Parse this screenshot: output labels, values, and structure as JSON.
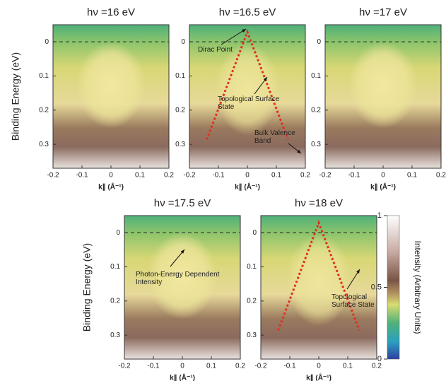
{
  "chart_data": [
    {
      "type": "heatmap",
      "title": "hν =16 eV",
      "ylabel": "Binding Energy (eV)",
      "xlabel": "k∥ (Å⁻¹)",
      "xlim": [
        -0.2,
        0.2
      ],
      "ylim": [
        -0.05,
        0.37
      ],
      "xticks": [
        -0.2,
        -0.1,
        0,
        0.1,
        0.2
      ],
      "yticks": [
        0,
        0.1,
        0.2,
        0.3
      ],
      "annotations": []
    },
    {
      "type": "heatmap",
      "title": "hν =16.5 eV",
      "xlabel": "k∥ (Å⁻¹)",
      "xlim": [
        -0.2,
        0.2
      ],
      "ylim": [
        -0.05,
        0.37
      ],
      "xticks": [
        -0.2,
        -0.1,
        0,
        0.1,
        0.2
      ],
      "yticks": [
        0,
        0.1,
        0.2,
        0.3
      ],
      "annotations": [
        "Dirac Point",
        "Topological Surface State",
        "Bulk Valence Band"
      ]
    },
    {
      "type": "heatmap",
      "title": "hν =17 eV",
      "xlabel": "k∥ (Å⁻¹)",
      "xlim": [
        -0.2,
        0.2
      ],
      "ylim": [
        -0.05,
        0.37
      ],
      "xticks": [
        -0.2,
        -0.1,
        0,
        0.1,
        0.2
      ],
      "yticks": [
        0,
        0.1,
        0.2,
        0.3
      ],
      "annotations": []
    },
    {
      "type": "heatmap",
      "title": "hν =17.5 eV",
      "ylabel": "Binding Energy (eV)",
      "xlabel": "k∥ (Å⁻¹)",
      "xlim": [
        -0.2,
        0.2
      ],
      "ylim": [
        -0.05,
        0.37
      ],
      "xticks": [
        -0.2,
        -0.1,
        0,
        0.1,
        0.2
      ],
      "yticks": [
        0,
        0.1,
        0.2,
        0.3
      ],
      "annotations": [
        "Photon-Energy Dependent Intensity"
      ]
    },
    {
      "type": "heatmap",
      "title": "hν =18 eV",
      "xlabel": "k∥ (Å⁻¹)",
      "xlim": [
        -0.2,
        0.2
      ],
      "ylim": [
        -0.05,
        0.37
      ],
      "xticks": [
        -0.2,
        -0.1,
        0,
        0.1,
        0.2
      ],
      "yticks": [
        0,
        0.1,
        0.2,
        0.3
      ],
      "annotations": [
        "Topological Surface State"
      ]
    }
  ],
  "colorbar": {
    "label": "Intensity (Arbitrary Units)",
    "lim": [
      0,
      1
    ],
    "ticks": [
      0,
      0.5,
      1
    ]
  }
}
